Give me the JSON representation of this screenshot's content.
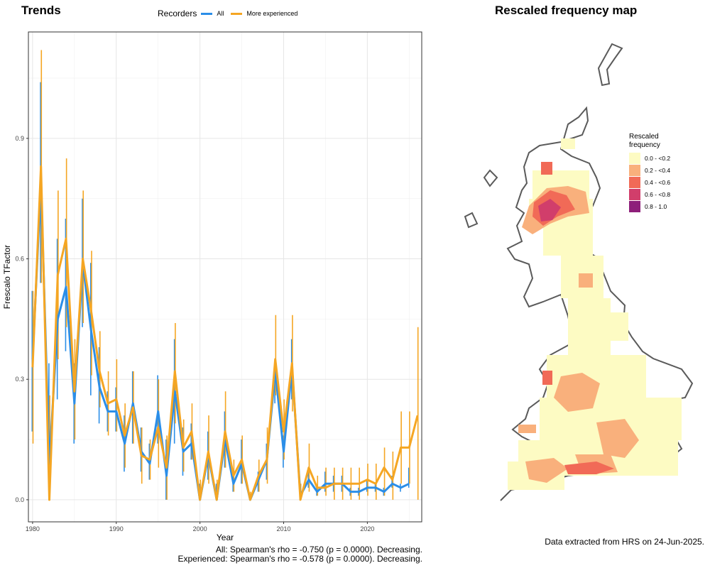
{
  "left_title": "Trends",
  "right_title": "Rescaled frequency map",
  "legend": {
    "title": "Recorders",
    "items": [
      {
        "label": "All",
        "color": "#2b8ee8"
      },
      {
        "label": "More experienced",
        "color": "#f5a623"
      }
    ]
  },
  "stats": {
    "all": "All: Spearman's rho = -0.750 (p = 0.0000). Decreasing.",
    "experienced": "Experienced: Spearman's rho = -0.578 (p = 0.0000). Decreasing."
  },
  "footer_note": "Data extracted from HRS on 24-Jun-2025.",
  "map_legend": {
    "title_line1": "Rescaled",
    "title_line2": "frequency",
    "items": [
      {
        "label": "0.0 - <0.2",
        "color": "#fdfbc3"
      },
      {
        "label": "0.2 - <0.4",
        "color": "#f9b07c"
      },
      {
        "label": "0.4 - <0.6",
        "color": "#f16a57"
      },
      {
        "label": "0.6 - <0.8",
        "color": "#d13e6b"
      },
      {
        "label": "0.8 - 1.0",
        "color": "#8e1f7a"
      }
    ]
  },
  "chart_data": {
    "type": "line",
    "xlabel": "Year",
    "ylabel": "Frescalo TFactor",
    "xlim": [
      1979.5,
      2026.5
    ],
    "ylim": [
      -0.055,
      1.165
    ],
    "xticks": [
      1980,
      1990,
      2000,
      2010,
      2020
    ],
    "yticks": [
      0.0,
      0.3,
      0.6,
      0.9
    ],
    "ytick_labels": [
      "0.0",
      "0.3",
      "0.6",
      "0.9"
    ],
    "grid": true,
    "series": [
      {
        "name": "All",
        "color": "#2b8ee8",
        "points": [
          [
            1980,
            0.35,
            0.17,
            0.52
          ],
          [
            1981,
            0.79,
            0.54,
            1.04
          ],
          [
            1982,
            0.09,
            0.09,
            0.34
          ],
          [
            1983,
            0.45,
            0.25,
            0.65
          ],
          [
            1984,
            0.53,
            0.37,
            0.7
          ],
          [
            1985,
            0.24,
            0.14,
            0.34
          ],
          [
            1986,
            0.59,
            0.43,
            0.75
          ],
          [
            1987,
            0.42,
            0.26,
            0.59
          ],
          [
            1988,
            0.28,
            0.19,
            0.38
          ],
          [
            1989,
            0.22,
            0.17,
            0.27
          ],
          [
            1990,
            0.22,
            0.17,
            0.28
          ],
          [
            1991,
            0.14,
            0.07,
            0.21
          ],
          [
            1992,
            0.24,
            0.14,
            0.32
          ],
          [
            1993,
            0.12,
            0.07,
            0.18
          ],
          [
            1994,
            0.09,
            0.05,
            0.14
          ],
          [
            1995,
            0.22,
            0.14,
            0.31
          ],
          [
            1996,
            0.06,
            0.0,
            0.15
          ],
          [
            1997,
            0.27,
            0.14,
            0.4
          ],
          [
            1998,
            0.12,
            0.06,
            0.18
          ],
          [
            1999,
            0.14,
            0.1,
            0.19
          ],
          [
            2000,
            0.0,
            0.0,
            0.04
          ],
          [
            2001,
            0.11,
            0.05,
            0.17
          ],
          [
            2002,
            0.0,
            0.0,
            0.04
          ],
          [
            2003,
            0.15,
            0.08,
            0.22
          ],
          [
            2004,
            0.04,
            0.02,
            0.06
          ],
          [
            2005,
            0.09,
            0.04,
            0.15
          ],
          [
            2006,
            0.0,
            0.0,
            0.01
          ],
          [
            2007,
            0.05,
            0.02,
            0.07
          ],
          [
            2008,
            0.1,
            0.05,
            0.14
          ],
          [
            2009,
            0.32,
            0.24,
            0.34
          ],
          [
            2010,
            0.12,
            0.08,
            0.16
          ],
          [
            2011,
            0.33,
            0.25,
            0.4
          ],
          [
            2012,
            0.01,
            0.0,
            0.03
          ],
          [
            2013,
            0.05,
            0.03,
            0.08
          ],
          [
            2014,
            0.02,
            0.01,
            0.03
          ],
          [
            2015,
            0.04,
            0.02,
            0.07
          ],
          [
            2016,
            0.04,
            0.02,
            0.06
          ],
          [
            2017,
            0.04,
            0.02,
            0.06
          ],
          [
            2018,
            0.02,
            0.01,
            0.03
          ],
          [
            2019,
            0.02,
            0.01,
            0.03
          ],
          [
            2020,
            0.03,
            0.02,
            0.05
          ],
          [
            2021,
            0.03,
            0.02,
            0.04
          ],
          [
            2022,
            0.02,
            0.01,
            0.03
          ],
          [
            2023,
            0.04,
            0.03,
            0.06
          ],
          [
            2024,
            0.03,
            0.02,
            0.04
          ],
          [
            2025,
            0.04,
            0.03,
            0.08
          ]
        ]
      },
      {
        "name": "More experienced",
        "color": "#f5a623",
        "points": [
          [
            1980,
            0.33,
            0.14,
            0.52
          ],
          [
            1981,
            0.83,
            0.54,
            1.12
          ],
          [
            1982,
            0.0,
            0.0,
            0.26
          ],
          [
            1983,
            0.56,
            0.35,
            0.77
          ],
          [
            1984,
            0.65,
            0.43,
            0.85
          ],
          [
            1985,
            0.27,
            0.15,
            0.4
          ],
          [
            1986,
            0.6,
            0.44,
            0.77
          ],
          [
            1987,
            0.47,
            0.31,
            0.62
          ],
          [
            1988,
            0.32,
            0.23,
            0.42
          ],
          [
            1989,
            0.24,
            0.16,
            0.32
          ],
          [
            1990,
            0.25,
            0.17,
            0.35
          ],
          [
            1991,
            0.16,
            0.08,
            0.24
          ],
          [
            1992,
            0.23,
            0.14,
            0.32
          ],
          [
            1993,
            0.11,
            0.04,
            0.18
          ],
          [
            1994,
            0.1,
            0.05,
            0.15
          ],
          [
            1995,
            0.18,
            0.08,
            0.3
          ],
          [
            1996,
            0.08,
            0.0,
            0.16
          ],
          [
            1997,
            0.32,
            0.19,
            0.44
          ],
          [
            1998,
            0.13,
            0.07,
            0.2
          ],
          [
            1999,
            0.17,
            0.1,
            0.24
          ],
          [
            2000,
            0.0,
            0.0,
            0.05
          ],
          [
            2001,
            0.12,
            0.04,
            0.21
          ],
          [
            2002,
            0.0,
            0.0,
            0.05
          ],
          [
            2003,
            0.17,
            0.08,
            0.27
          ],
          [
            2004,
            0.06,
            0.02,
            0.1
          ],
          [
            2005,
            0.1,
            0.04,
            0.16
          ],
          [
            2006,
            0.0,
            0.0,
            0.02
          ],
          [
            2007,
            0.06,
            0.02,
            0.1
          ],
          [
            2008,
            0.1,
            0.04,
            0.18
          ],
          [
            2009,
            0.35,
            0.26,
            0.46
          ],
          [
            2010,
            0.17,
            0.1,
            0.25
          ],
          [
            2011,
            0.34,
            0.22,
            0.46
          ],
          [
            2012,
            0.0,
            0.0,
            0.04
          ],
          [
            2013,
            0.08,
            0.02,
            0.14
          ],
          [
            2014,
            0.03,
            0.01,
            0.06
          ],
          [
            2015,
            0.03,
            0.01,
            0.08
          ],
          [
            2016,
            0.04,
            0.0,
            0.08
          ],
          [
            2017,
            0.04,
            0.0,
            0.08
          ],
          [
            2018,
            0.04,
            0.0,
            0.08
          ],
          [
            2019,
            0.04,
            0.0,
            0.08
          ],
          [
            2020,
            0.05,
            0.01,
            0.09
          ],
          [
            2021,
            0.04,
            0.0,
            0.09
          ],
          [
            2022,
            0.08,
            0.01,
            0.13
          ],
          [
            2023,
            0.05,
            0.0,
            0.12
          ],
          [
            2024,
            0.13,
            0.04,
            0.22
          ],
          [
            2025,
            0.13,
            0.04,
            0.22
          ],
          [
            2026,
            0.21,
            0.0,
            0.43
          ]
        ]
      }
    ]
  }
}
